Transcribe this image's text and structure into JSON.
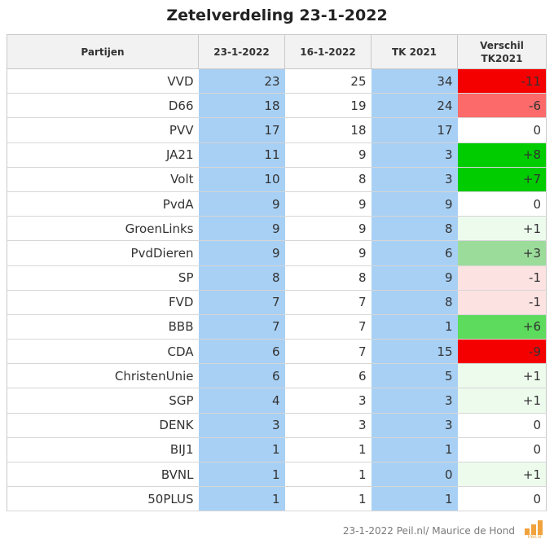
{
  "title": "Zetelverdeling 23-1-2022",
  "chart_data": {
    "type": "table",
    "title": "Zetelverdeling 23-1-2022",
    "columns": [
      "Partijen",
      "23-1-2022",
      "16-1-2022",
      "TK 2021",
      "Verschil TK2021"
    ],
    "rows": [
      {
        "party": "VVD",
        "c1": 23,
        "c2": 25,
        "c3": 34,
        "diff": "-11",
        "color": "#f50000"
      },
      {
        "party": "D66",
        "c1": 18,
        "c2": 19,
        "c3": 24,
        "diff": "-6",
        "color": "#fc6a6a"
      },
      {
        "party": "PVV",
        "c1": 17,
        "c2": 18,
        "c3": 17,
        "diff": "0",
        "color": "#ffffff"
      },
      {
        "party": "JA21",
        "c1": 11,
        "c2": 9,
        "c3": 3,
        "diff": "+8",
        "color": "#00cc00"
      },
      {
        "party": "Volt",
        "c1": 10,
        "c2": 8,
        "c3": 3,
        "diff": "+7",
        "color": "#00cc00"
      },
      {
        "party": "PvdA",
        "c1": 9,
        "c2": 9,
        "c3": 9,
        "diff": "0",
        "color": "#ffffff"
      },
      {
        "party": "GroenLinks",
        "c1": 9,
        "c2": 9,
        "c3": 8,
        "diff": "+1",
        "color": "#edfbed"
      },
      {
        "party": "PvdDieren",
        "c1": 9,
        "c2": 9,
        "c3": 6,
        "diff": "+3",
        "color": "#9bdc9b"
      },
      {
        "party": "SP",
        "c1": 8,
        "c2": 8,
        "c3": 9,
        "diff": "-1",
        "color": "#fde2e2"
      },
      {
        "party": "FVD",
        "c1": 7,
        "c2": 7,
        "c3": 8,
        "diff": "-1",
        "color": "#fde2e2"
      },
      {
        "party": "BBB",
        "c1": 7,
        "c2": 7,
        "c3": 1,
        "diff": "+6",
        "color": "#5cdb5c"
      },
      {
        "party": "CDA",
        "c1": 6,
        "c2": 7,
        "c3": 15,
        "diff": "-9",
        "color": "#f50000"
      },
      {
        "party": "ChristenUnie",
        "c1": 6,
        "c2": 6,
        "c3": 5,
        "diff": "+1",
        "color": "#edfbed"
      },
      {
        "party": "SGP",
        "c1": 4,
        "c2": 3,
        "c3": 3,
        "diff": "+1",
        "color": "#edfbed"
      },
      {
        "party": "DENK",
        "c1": 3,
        "c2": 3,
        "c3": 3,
        "diff": "0",
        "color": "#ffffff"
      },
      {
        "party": "BIJ1",
        "c1": 1,
        "c2": 1,
        "c3": 1,
        "diff": "0",
        "color": "#ffffff"
      },
      {
        "party": "BVNL",
        "c1": 1,
        "c2": 1,
        "c3": 0,
        "diff": "+1",
        "color": "#edfbed"
      },
      {
        "party": "50PLUS",
        "c1": 1,
        "c2": 1,
        "c3": 1,
        "diff": "0",
        "color": "#ffffff"
      }
    ]
  },
  "footer": "23-1-2022 Peil.nl/ Maurice de Hond",
  "logo_text": "Peil.nl",
  "colors": {
    "blue_column": "#a8d0f4",
    "header_bg": "#f2f2f2",
    "logo": "#f0a23c"
  }
}
